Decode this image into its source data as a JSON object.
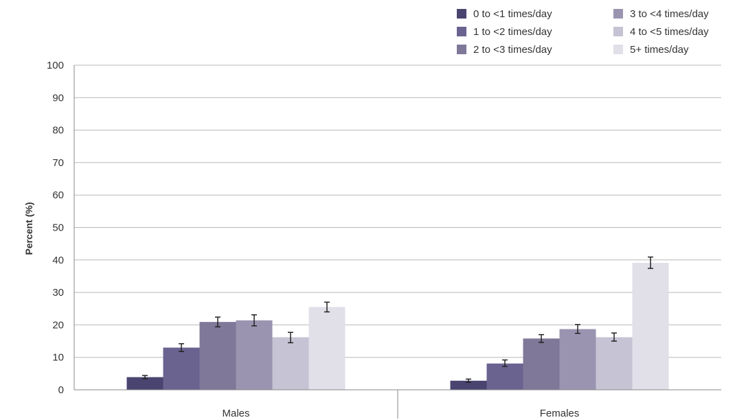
{
  "chart_data": {
    "type": "bar",
    "categories": [
      "Males",
      "Females"
    ],
    "series": [
      {
        "name": "0 to <1 times/day",
        "values": [
          3.9,
          2.8
        ],
        "err_low": [
          3.4,
          2.3
        ],
        "err_high": [
          4.4,
          3.3
        ],
        "color": "#4a4470"
      },
      {
        "name": "1 to <2 times/day",
        "values": [
          13.0,
          8.1
        ],
        "err_low": [
          11.8,
          7.2
        ],
        "err_high": [
          14.2,
          9.2
        ],
        "color": "#6a6390"
      },
      {
        "name": "2 to <3 times/day",
        "values": [
          20.9,
          15.8
        ],
        "err_low": [
          19.4,
          14.6
        ],
        "err_high": [
          22.4,
          17.0
        ],
        "color": "#7f7898"
      },
      {
        "name": "3 to <4 times/day",
        "values": [
          21.4,
          18.7
        ],
        "err_low": [
          19.7,
          17.4
        ],
        "err_high": [
          23.1,
          20.1
        ],
        "color": "#9a94b0"
      },
      {
        "name": "4 to <5 times/day",
        "values": [
          16.2,
          16.2
        ],
        "err_low": [
          14.5,
          15.0
        ],
        "err_high": [
          17.7,
          17.5
        ],
        "color": "#c6c3d4"
      },
      {
        "name": "5+ times/day",
        "values": [
          25.5,
          39.1
        ],
        "err_low": [
          24.0,
          37.4
        ],
        "err_high": [
          27.0,
          40.9
        ],
        "color": "#e1dfe8"
      }
    ],
    "ylabel": "Percent (%)",
    "xlabel": "",
    "ylim": [
      0,
      100
    ],
    "yticks": [
      0,
      10,
      20,
      30,
      40,
      50,
      60,
      70,
      80,
      90,
      100
    ],
    "grid": "horizontal",
    "legend_position": "top-right"
  }
}
